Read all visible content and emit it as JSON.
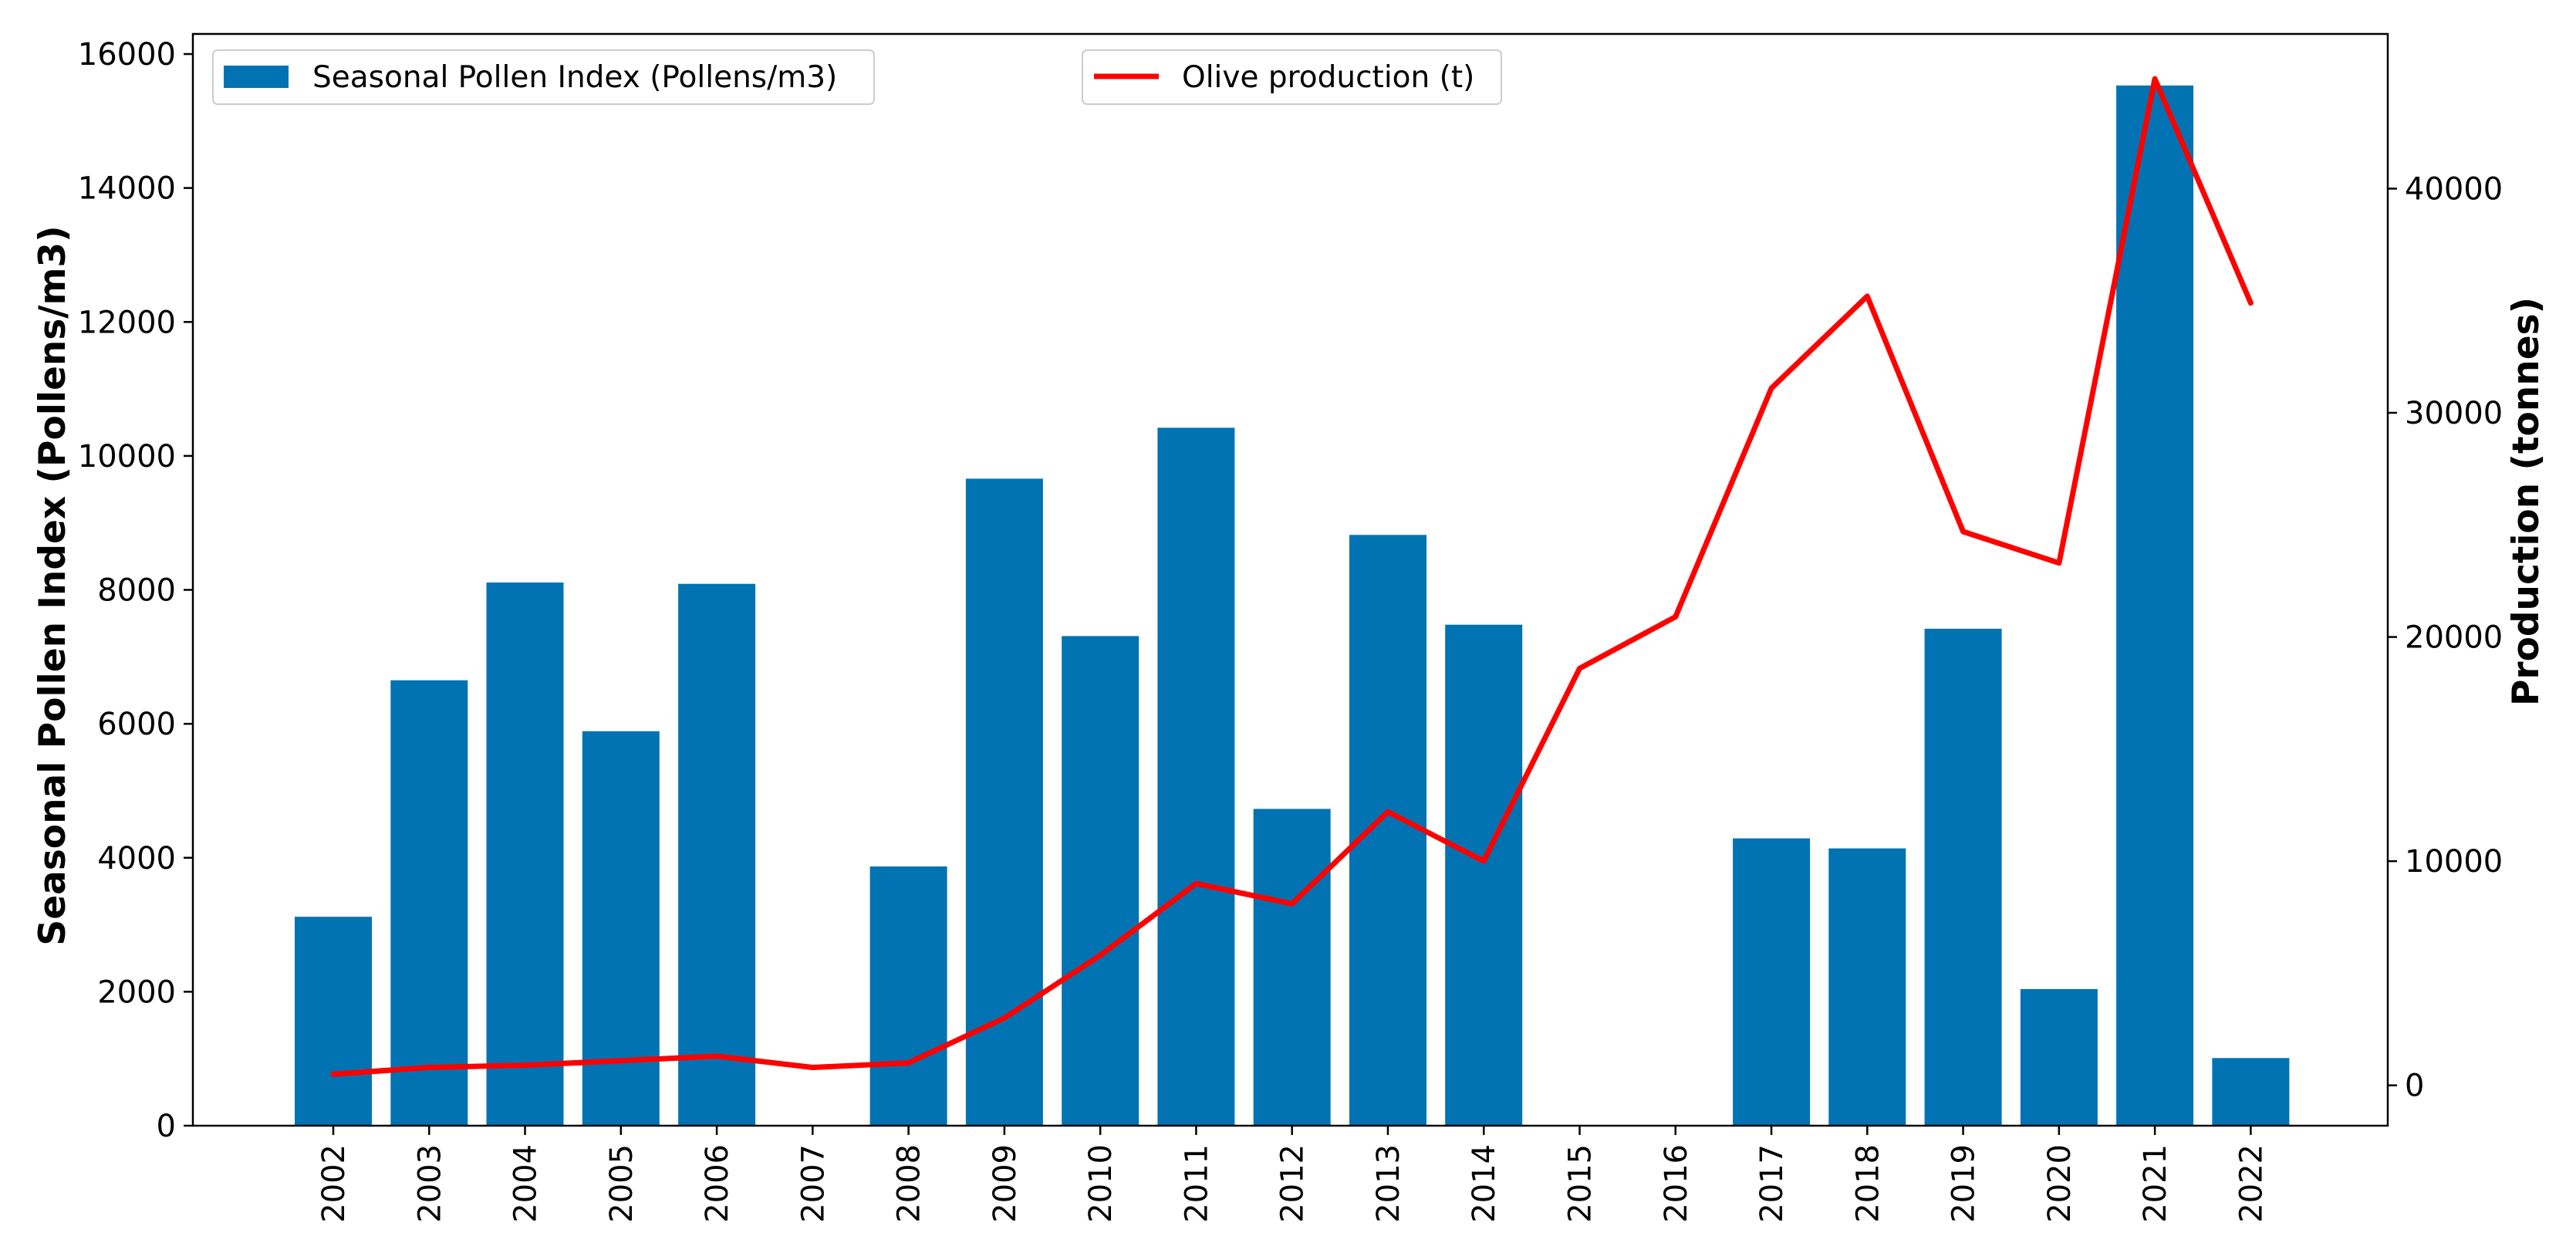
{
  "chart_data": {
    "type": "bar",
    "categories": [
      "2002",
      "2003",
      "2004",
      "2005",
      "2006",
      "2007",
      "2008",
      "2009",
      "2010",
      "2011",
      "2012",
      "2013",
      "2014",
      "2015",
      "2016",
      "2017",
      "2018",
      "2019",
      "2020",
      "2021",
      "2022"
    ],
    "series": [
      {
        "name": "Seasonal Pollen Index (Pollens/m3)",
        "type": "bar",
        "axis": "left",
        "color": "#0173b2",
        "values": [
          3120,
          6650,
          8110,
          5890,
          8090,
          null,
          3870,
          9660,
          7310,
          10420,
          4730,
          8820,
          7480,
          null,
          null,
          4290,
          4140,
          7420,
          2040,
          15530,
          1010
        ]
      },
      {
        "name": "Olive production (t)",
        "type": "line",
        "axis": "right",
        "color": "#ff0000",
        "values": [
          500,
          800,
          900,
          1100,
          1300,
          800,
          1000,
          3000,
          5800,
          9000,
          8100,
          12200,
          10000,
          18600,
          20900,
          31100,
          35200,
          24700,
          23300,
          44900,
          34900
        ]
      }
    ],
    "ylabel": "Seasonal Pollen Index (Pollens/m3)",
    "y2label": "Production (tonnes)",
    "xlabel": "",
    "title": "",
    "ylim": [
      0,
      16300
    ],
    "y2lim": [
      -1800,
      46900
    ],
    "yticks": [
      0,
      2000,
      4000,
      6000,
      8000,
      10000,
      12000,
      14000,
      16000
    ],
    "y2ticks": [
      0,
      10000,
      20000,
      30000,
      40000
    ],
    "legend": [
      {
        "position": "top-left",
        "label": "Seasonal Pollen Index (Pollens/m3)"
      },
      {
        "position": "top-center",
        "label": "Olive production (t)"
      }
    ],
    "grid": false
  }
}
